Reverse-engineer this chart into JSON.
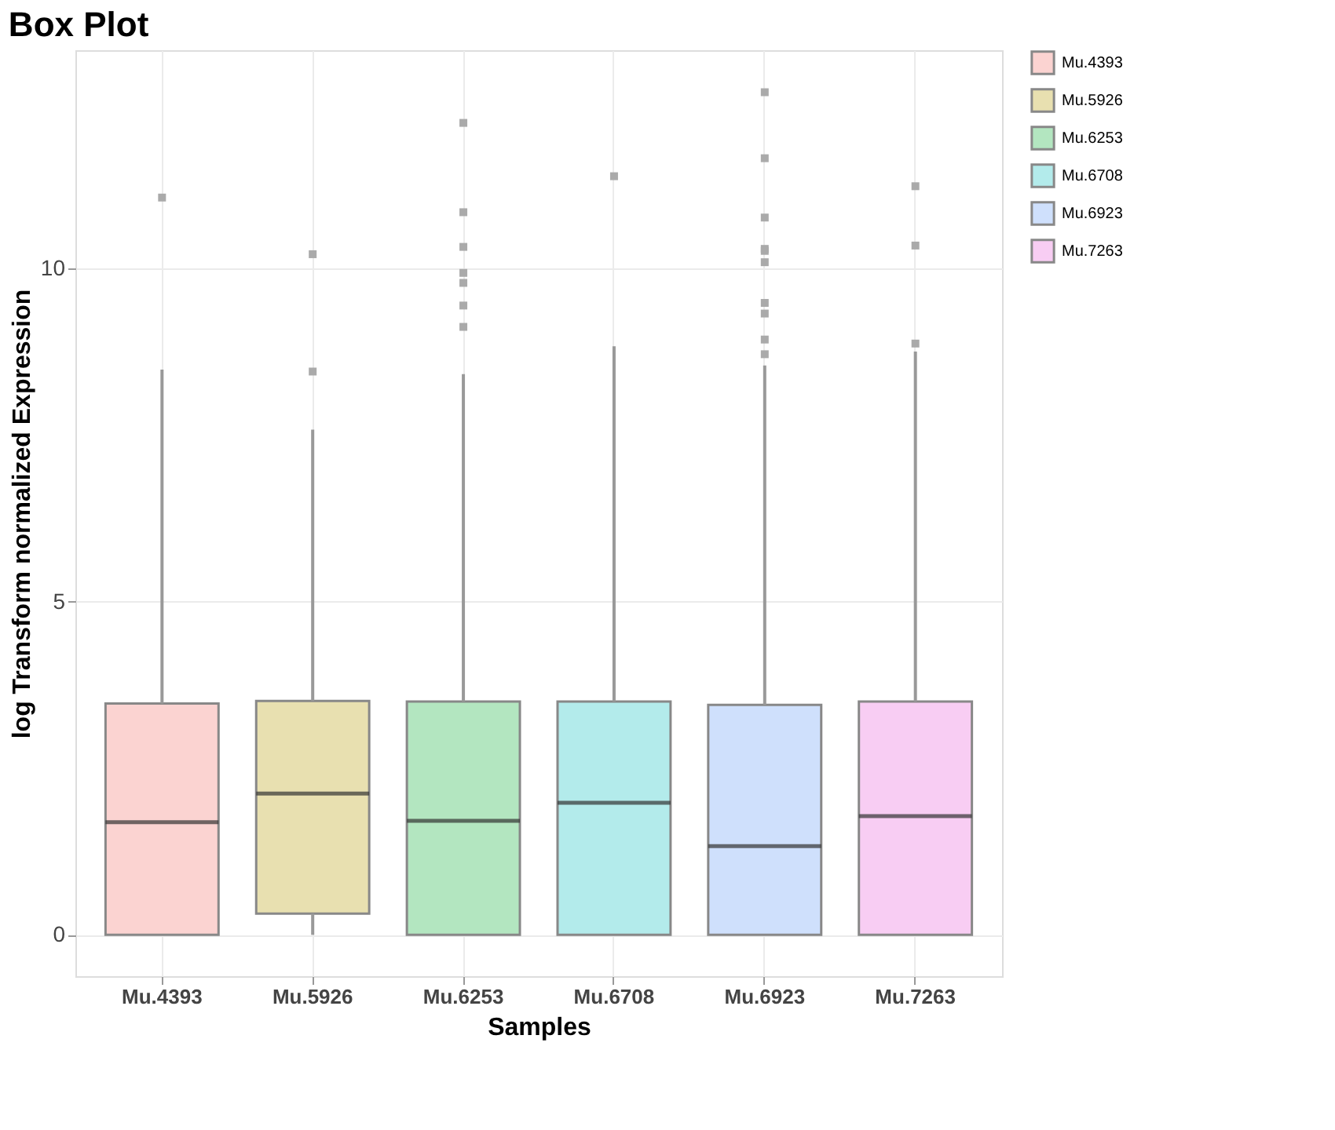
{
  "chart_data": {
    "type": "box",
    "title": "Box Plot",
    "xlabel": "Samples",
    "ylabel": "log Transform normalized Expression",
    "categories": [
      "Mu.4393",
      "Mu.5926",
      "Mu.6253",
      "Mu.6708",
      "Mu.6923",
      "Mu.7263"
    ],
    "series": [
      {
        "name": "Mu.4393",
        "color": "#fbd3d1",
        "x": [
          "Mu.4393"
        ],
        "boxes": [
          {
            "low": 0,
            "q1": 0,
            "median": 1.69,
            "q3": 3.47,
            "high": 8.48,
            "outliers": [
              11.06
            ]
          }
        ]
      },
      {
        "name": "Mu.5926",
        "color": "#e8e0b0",
        "x": [
          "Mu.5926"
        ],
        "boxes": [
          {
            "low": 0,
            "q1": 0.32,
            "median": 2.12,
            "q3": 3.51,
            "high": 7.58,
            "outliers": [
              8.45,
              10.21
            ]
          }
        ]
      },
      {
        "name": "Mu.6253",
        "color": "#b3e6c0",
        "x": [
          "Mu.6253"
        ],
        "boxes": [
          {
            "low": 0,
            "q1": 0,
            "median": 1.71,
            "q3": 3.5,
            "high": 8.41,
            "outliers": [
              12.18,
              10.84,
              10.32,
              9.93,
              9.78,
              9.44,
              9.12
            ]
          }
        ]
      },
      {
        "name": "Mu.6708",
        "color": "#b3ebeb",
        "x": [
          "Mu.6708"
        ],
        "boxes": [
          {
            "low": 0,
            "q1": 0,
            "median": 1.98,
            "q3": 3.5,
            "high": 8.83,
            "outliers": [
              11.38
            ]
          }
        ]
      },
      {
        "name": "Mu.6923",
        "color": "#cfe0fc",
        "x": [
          "Mu.6923"
        ],
        "boxes": [
          {
            "low": 0,
            "q1": 0,
            "median": 1.33,
            "q3": 3.45,
            "high": 8.54,
            "outliers": [
              12.64,
              11.65,
              10.76,
              10.29,
              10.26,
              10.09,
              9.48,
              9.32,
              8.93,
              8.71
            ]
          }
        ]
      },
      {
        "name": "Mu.7263",
        "color": "#f8cdf3",
        "x": [
          "Mu.7263"
        ],
        "boxes": [
          {
            "low": 0,
            "q1": 0,
            "median": 1.78,
            "q3": 3.5,
            "high": 8.75,
            "outliers": [
              11.23,
              10.34,
              8.87
            ]
          }
        ]
      }
    ],
    "ylim": [
      -0.62,
      13.27
    ],
    "yticks": [
      0,
      5,
      10
    ],
    "grid": true,
    "legend": "right"
  }
}
